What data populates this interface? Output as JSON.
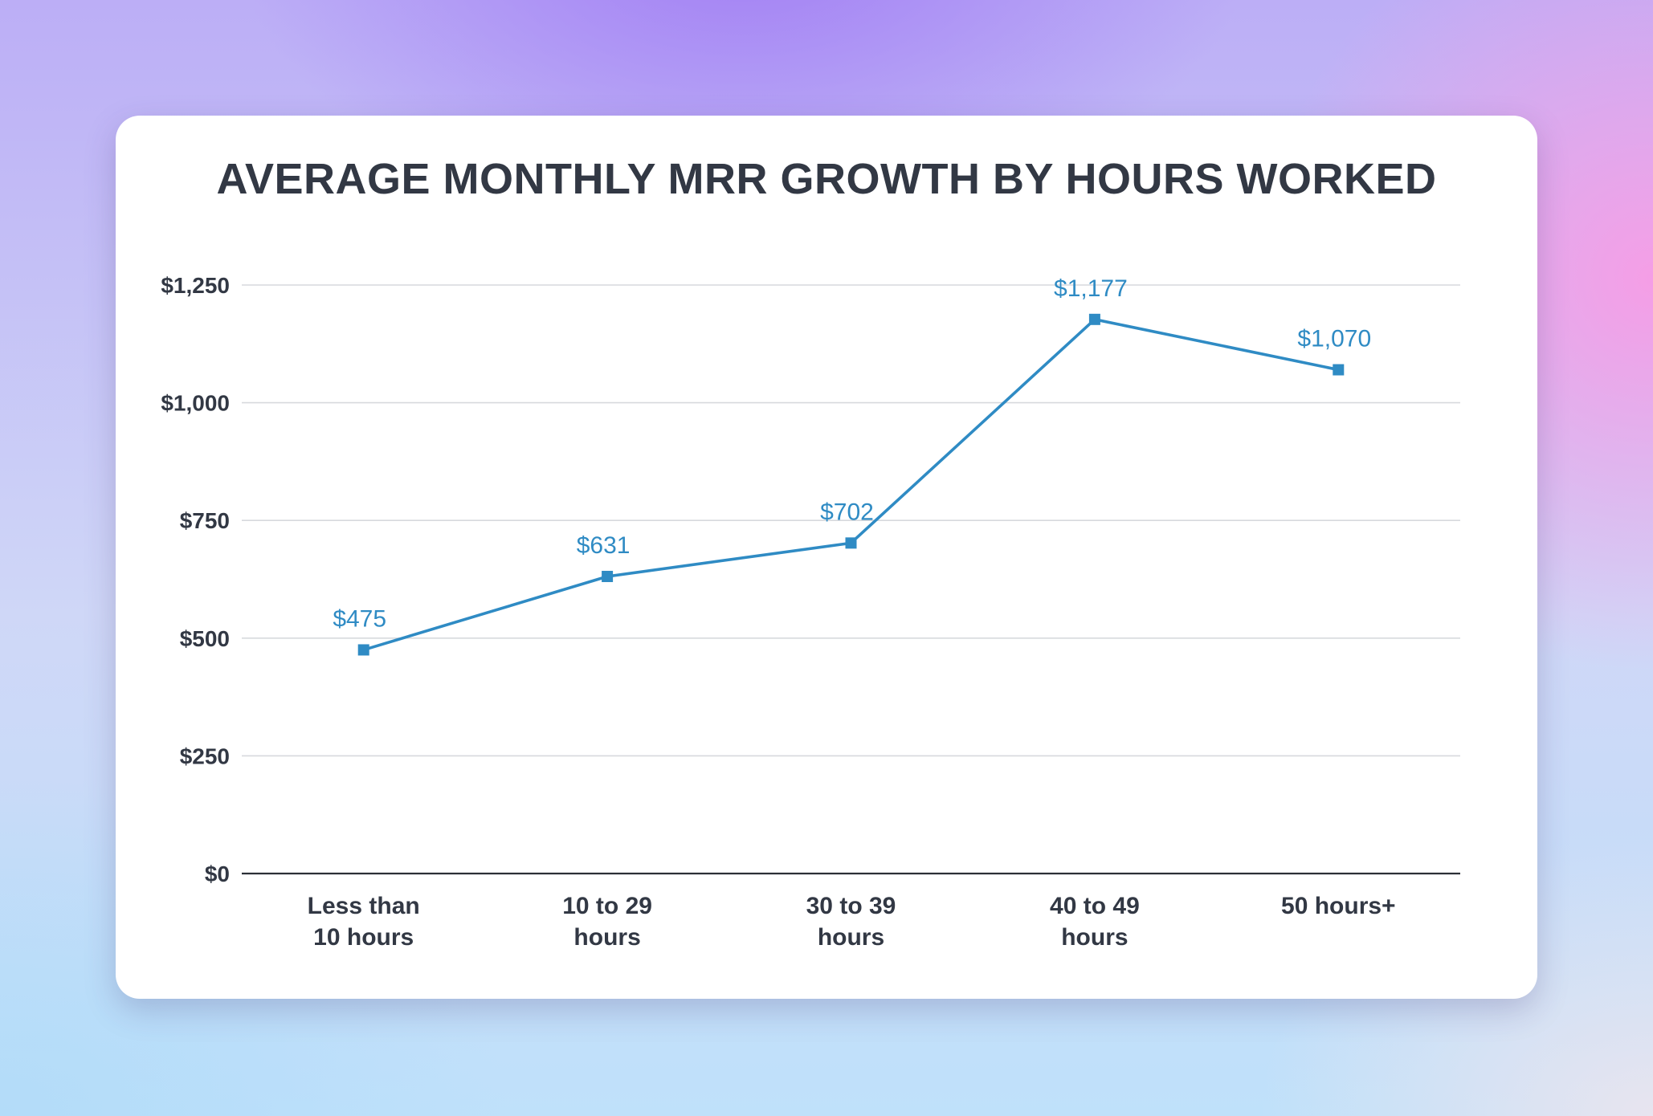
{
  "chart_data": {
    "type": "line",
    "title": "AVERAGE MONTHLY MRR GROWTH BY HOURS WORKED",
    "categories": [
      [
        "Less than",
        "10 hours"
      ],
      [
        "10 to 29",
        "hours"
      ],
      [
        "30 to 39",
        "hours"
      ],
      [
        "40 to 49",
        "hours"
      ],
      [
        "50 hours+"
      ]
    ],
    "series": [
      {
        "values": [
          475,
          631,
          702,
          1177,
          1070
        ],
        "data_labels": [
          "$475",
          "$631",
          "$702",
          "$1,177",
          "$1,070"
        ],
        "color": "#2f8bc4",
        "marker": "square"
      }
    ],
    "y_ticks": [
      0,
      250,
      500,
      750,
      1000,
      1250
    ],
    "y_tick_labels": [
      "$0",
      "$250",
      "$500",
      "$750",
      "$1,000",
      "$1,250"
    ],
    "ylim": [
      0,
      1250
    ],
    "xlabel": "",
    "ylabel": "",
    "grid": true,
    "legend": "none"
  }
}
